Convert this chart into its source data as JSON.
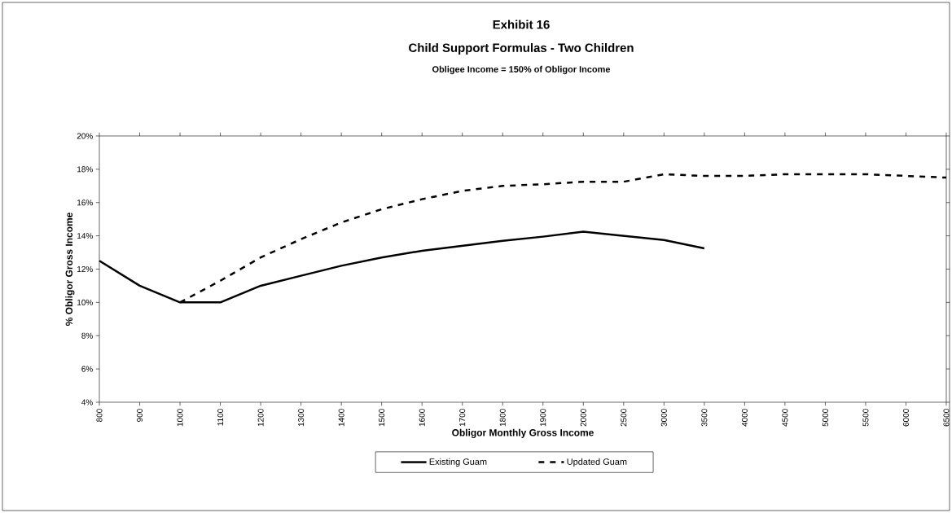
{
  "chart_data": {
    "type": "line",
    "title": "Exhibit 16",
    "subtitle": "Child Support Formulas - Two Children",
    "annotations": [
      "Obligee Income = 150% of Obligor Income"
    ],
    "xlabel": "Obligor Monthly Gross Income",
    "ylabel": "% Obligor Gross Income",
    "categories": [
      "800",
      "900",
      "1000",
      "1100",
      "1200",
      "1300",
      "1400",
      "1500",
      "1600",
      "1700",
      "1800",
      "1900",
      "2000",
      "2500",
      "3000",
      "3500",
      "4000",
      "4500",
      "5000",
      "5500",
      "6000",
      "6500"
    ],
    "series": [
      {
        "name": "Existing Guam",
        "color": "#000000",
        "line_style": "solid",
        "values": [
          12.5,
          11.0,
          10.0,
          10.0,
          11.0,
          11.6,
          12.2,
          12.7,
          13.1,
          13.4,
          13.7,
          13.95,
          14.25,
          14.0,
          13.75,
          13.25,
          null,
          null,
          null,
          null,
          null,
          null
        ]
      },
      {
        "name": "Updated Guam",
        "color": "#000000",
        "line_style": "dashed",
        "values": [
          null,
          null,
          10.0,
          11.3,
          12.7,
          13.8,
          14.8,
          15.6,
          16.2,
          16.7,
          17.0,
          17.1,
          17.25,
          17.25,
          17.7,
          17.6,
          17.6,
          17.7,
          17.7,
          17.7,
          17.6,
          17.5
        ]
      }
    ],
    "ylim": [
      4,
      20
    ],
    "yticks": [
      {
        "value": 4,
        "label": "4%"
      },
      {
        "value": 6,
        "label": "6%"
      },
      {
        "value": 8,
        "label": "8%"
      },
      {
        "value": 10,
        "label": "10%"
      },
      {
        "value": 12,
        "label": "12%"
      },
      {
        "value": 14,
        "label": "14%"
      },
      {
        "value": 16,
        "label": "16%"
      },
      {
        "value": 18,
        "label": "18%"
      },
      {
        "value": 20,
        "label": "20%"
      }
    ],
    "grid": false,
    "legend": "bottom",
    "marker": "none"
  }
}
